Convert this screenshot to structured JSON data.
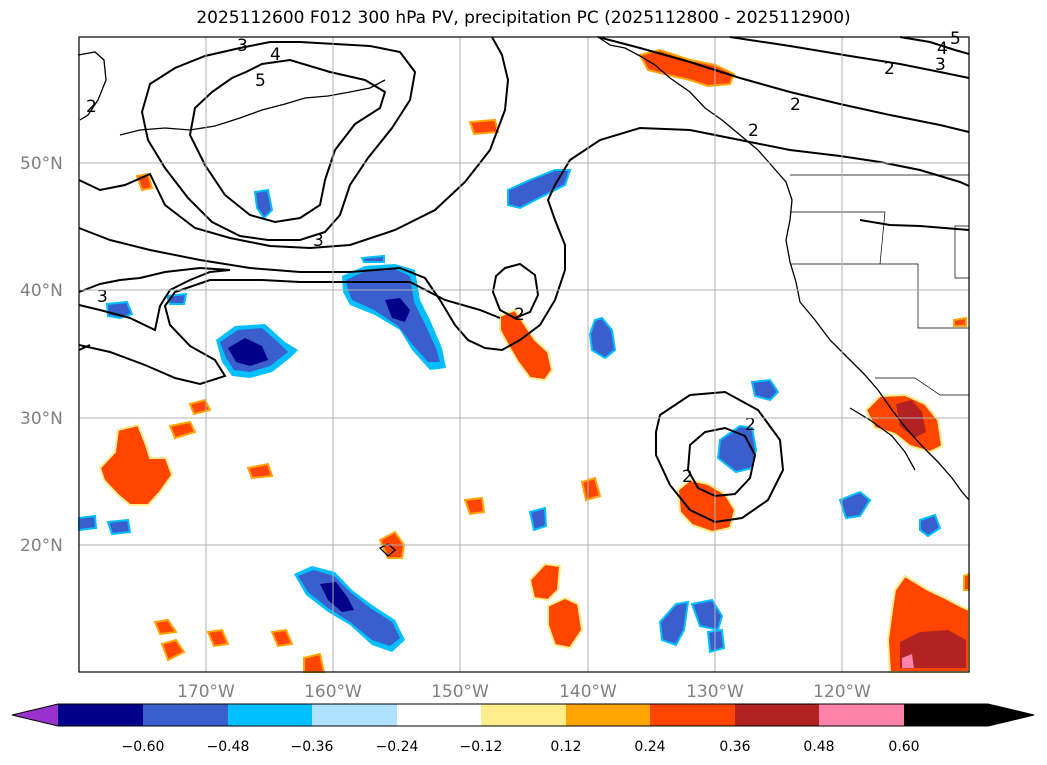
{
  "title": "2025112600 F012 300 hPa PV, precipitation PC (2025112800 - 2025112900)",
  "map": {
    "lat_labels": [
      "50°N",
      "40°N",
      "30°N",
      "20°N"
    ],
    "lon_labels": [
      "170°W",
      "160°W",
      "150°W",
      "140°W",
      "130°W",
      "120°W"
    ],
    "contour_labels": [
      "5",
      "4",
      "3",
      "2",
      "2",
      "3",
      "3",
      "2",
      "2",
      "2",
      "2",
      "2",
      "3",
      "4",
      "5"
    ]
  },
  "colorbar": {
    "ticks": [
      "−0.60",
      "−0.48",
      "−0.36",
      "−0.24",
      "−0.12",
      "0.12",
      "0.24",
      "0.36",
      "0.48",
      "0.60"
    ],
    "colors": [
      "#9932cc",
      "#00008b",
      "#3a5fcd",
      "#00bfff",
      "#b0e2ff",
      "#ffffff",
      "#ffec8b",
      "#ffa500",
      "#ff4500",
      "#b22222",
      "#ff82ab"
    ]
  },
  "colors": {
    "neg_strong": "#00008b",
    "neg_mid": "#3a5fcd",
    "neg_light": "#00bfff",
    "pos_light": "#ffec8b",
    "pos_mid": "#ffa500",
    "pos_strong": "#ff4500",
    "pos_dark": "#b22222",
    "pos_max": "#ff82ab"
  }
}
